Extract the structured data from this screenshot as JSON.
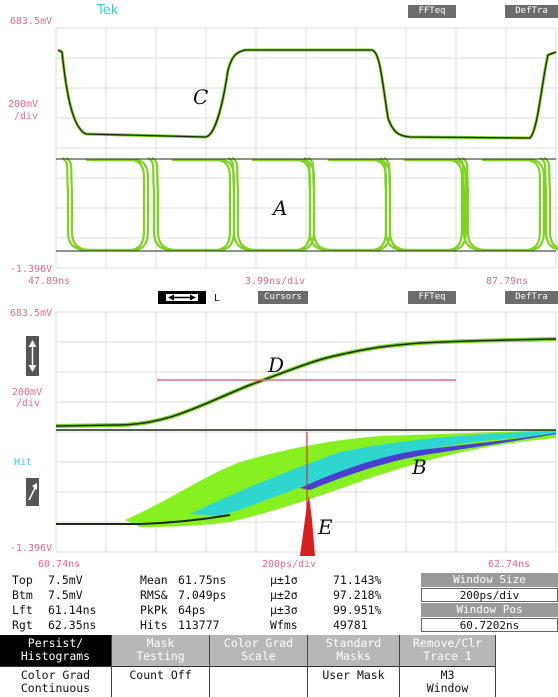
{
  "top_display": {
    "brand": "Tek",
    "btn_ffteq": "FFTeq",
    "btn_deltra": "DefTra",
    "vtop": "683.5mV",
    "scale_v": "200mV",
    "scale_div": "/div",
    "vbottom": "-1.396V",
    "time_left": "47.89ns",
    "time_mid": "3.99ns/div",
    "time_right": "87.79ns",
    "label_c": "C",
    "label_a": "A"
  },
  "bottom_display": {
    "mode_label": "L",
    "cursors_label": "Cursors",
    "btn_ffteq": "FFTeq",
    "btn_deltra": "DefTra",
    "vtop": "683.5mV",
    "scale_v": "200mV",
    "scale_div": "/div",
    "hit_label": "Hit",
    "vbottom": "-1.396V",
    "time_left": "60.74ns",
    "time_mid": "200ps/div",
    "time_right": "62.74ns",
    "label_d": "D",
    "label_b": "B",
    "label_e": "E"
  },
  "measurements": {
    "col1": [
      {
        "label": "Top",
        "value": "7.5mV"
      },
      {
        "label": "Btm",
        "value": "7.5mV"
      },
      {
        "label": "Lft",
        "value": "61.14ns"
      },
      {
        "label": "Rgt",
        "value": "62.35ns"
      }
    ],
    "col2": [
      {
        "label": "Mean",
        "value": "61.75ns"
      },
      {
        "label": "RMS&",
        "value": "7.049ps"
      },
      {
        "label": "PkPk",
        "value": "64ps"
      },
      {
        "label": "Hits",
        "value": "113777"
      }
    ],
    "col3": [
      {
        "label": "µ±1σ",
        "value": "71.143%"
      },
      {
        "label": "µ±2σ",
        "value": "97.218%"
      },
      {
        "label": "µ±3σ",
        "value": "99.951%"
      },
      {
        "label": "Wfms",
        "value": "49781"
      }
    ],
    "window_size_label": "Window Size",
    "window_size_value": "200ps/div",
    "window_pos_label": "Window Pos",
    "window_pos_value": "60.7202ns"
  },
  "menu": [
    {
      "top": "Persist/\nHistograms",
      "bottom": "Color Grad\nContinuous",
      "selected": true
    },
    {
      "top": "Mask\nTesting",
      "bottom": "Count Off",
      "selected": false
    },
    {
      "top": "Color Grad\nScale",
      "bottom": "",
      "selected": false
    },
    {
      "top": "Standard\nMasks",
      "bottom": "User Mask",
      "selected": false
    },
    {
      "top": "Remove/Clr\nTrace 1",
      "bottom": "M3\nWindow",
      "selected": false
    }
  ],
  "colors": {
    "grid": "#dcdcdc",
    "trace_green": "#7ed321",
    "trace_dark": "#1d2a14",
    "cyan": "#2fd6d0",
    "pink": "#e46a8a",
    "red": "#d81e1e",
    "blue": "#4a3fd0"
  }
}
